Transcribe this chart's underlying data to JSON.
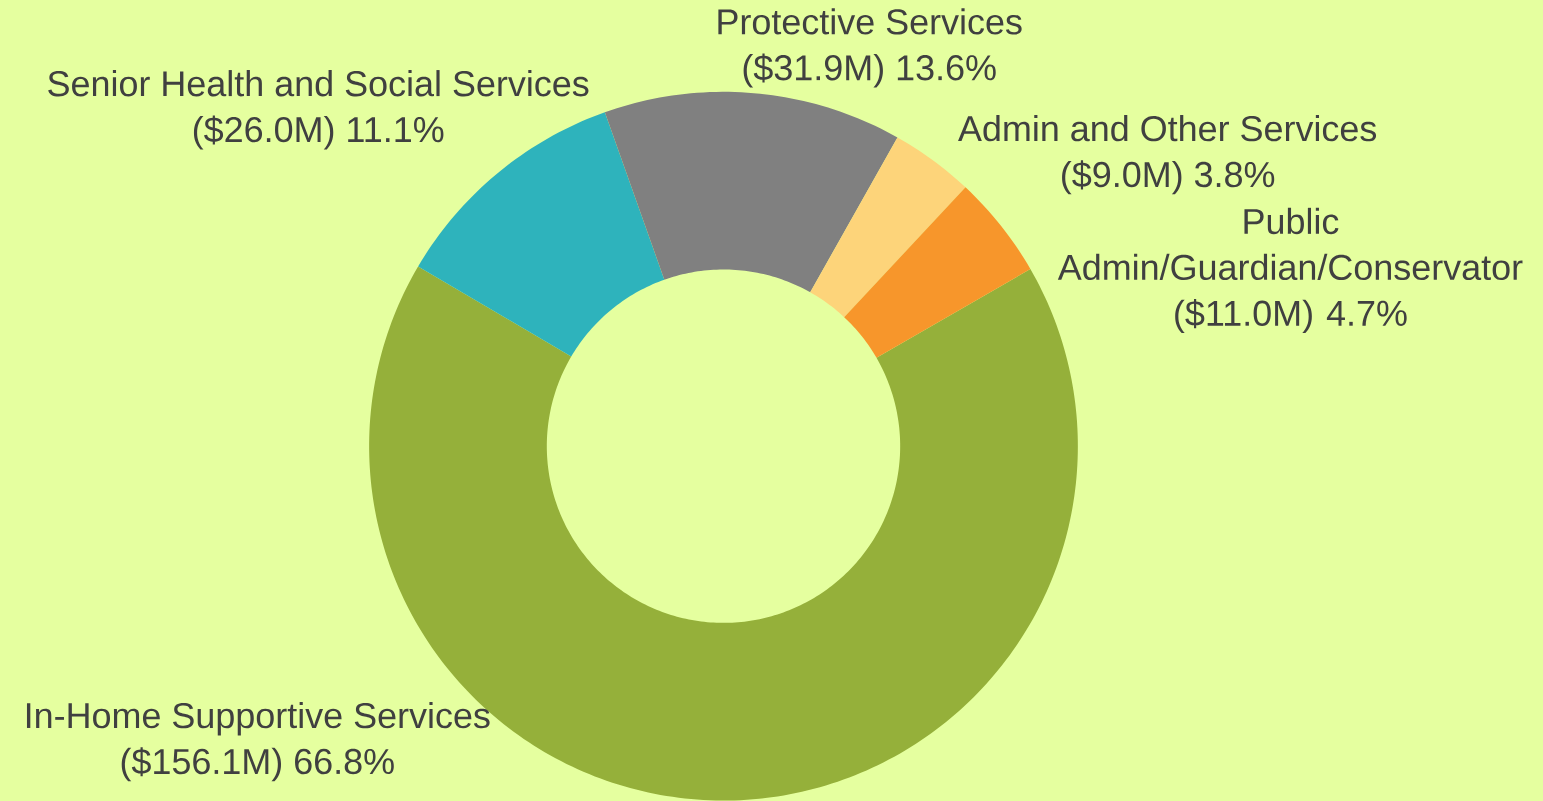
{
  "chart_data": {
    "type": "donut",
    "categories": [
      "In-Home Supportive Services",
      "Senior Health and Social Services",
      "Protective Services",
      "Admin and Other Services",
      "Public Admin/Guardian/Conservator"
    ],
    "values": [
      66.8,
      11.1,
      13.6,
      3.8,
      4.7
    ],
    "colors": [
      "#95b03a",
      "#2eb3bc",
      "#808080",
      "#fdd47a",
      "#f7962b"
    ],
    "value_labels": [
      "($156.1M) 66.8%",
      "($26.0M) 11.1%",
      "($31.9M) 13.6%",
      "($9.0M) 3.8%",
      "($11.0M) 4.7%"
    ]
  }
}
